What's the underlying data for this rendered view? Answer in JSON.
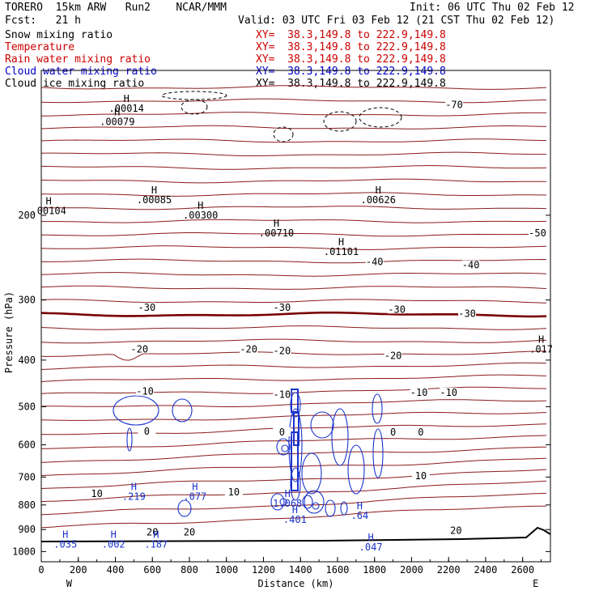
{
  "header": {
    "model": "TORERO  15km ARW   Run2    NCAR/MMM",
    "forecast": "Fcst:   21 h",
    "init": "Init: 06 UTC Thu 02 Feb 12",
    "valid": "Valid: 03 UTC Fri 03 Feb 12 (21 CST Thu 02 Feb 12)"
  },
  "fields": [
    {
      "name": "Snow mixing ratio",
      "xy": "XY=  38.3,149.8 to 222.9,149.8",
      "color": "#000000"
    },
    {
      "name": "Temperature",
      "xy": "XY=  38.3,149.8 to 222.9,149.8",
      "color": "#cc0000"
    },
    {
      "name": "Rain water mixing ratio",
      "xy": "XY=  38.3,149.8 to 222.9,149.8",
      "color": "#cc0000"
    },
    {
      "name": "Cloud water mixing ratio",
      "xy": "XY=  38.3,149.8 to 222.9,149.8",
      "color": "#0000cc"
    },
    {
      "name": "Cloud ice mixing ratio",
      "xy": "XY=  38.3,149.8 to 222.9,149.8",
      "color": "#000000"
    }
  ],
  "chart_data": {
    "type": "contour",
    "xlabel": "Distance (km)",
    "ylabel": "Pressure (hPa)",
    "xlim": [
      0,
      2750
    ],
    "ylim": [
      1050,
      100
    ],
    "y_scale": "log",
    "x_ticks": [
      0,
      200,
      400,
      600,
      800,
      1000,
      1200,
      1400,
      1600,
      1800,
      2000,
      2200,
      2400,
      2600
    ],
    "y_ticks": [
      200,
      300,
      400,
      500,
      600,
      700,
      800,
      900,
      1000
    ],
    "x_end_labels": [
      "W",
      "E"
    ],
    "temperature_contours": [
      {
        "label": "-70",
        "x": 2230,
        "p": 118
      },
      {
        "label": "-50",
        "x": 2680,
        "p": 218
      },
      {
        "label": "-40",
        "x": 1800,
        "p": 250
      },
      {
        "label": "-40",
        "x": 2320,
        "p": 254
      },
      {
        "label": "-30",
        "x": 570,
        "p": 311
      },
      {
        "label": "-30",
        "x": 1300,
        "p": 311
      },
      {
        "label": "-30",
        "x": 1920,
        "p": 314
      },
      {
        "label": "-30",
        "x": 2300,
        "p": 320
      },
      {
        "label": "-20",
        "x": 530,
        "p": 380
      },
      {
        "label": "-20",
        "x": 1120,
        "p": 380
      },
      {
        "label": "-20",
        "x": 1300,
        "p": 383
      },
      {
        "label": "-20",
        "x": 1900,
        "p": 392
      },
      {
        "label": "-10",
        "x": 560,
        "p": 465
      },
      {
        "label": "-10",
        "x": 1300,
        "p": 472
      },
      {
        "label": "-10",
        "x": 2040,
        "p": 467
      },
      {
        "label": "-10",
        "x": 2200,
        "p": 467
      },
      {
        "label": "0",
        "x": 570,
        "p": 563
      },
      {
        "label": "0",
        "x": 1300,
        "p": 565
      },
      {
        "label": "0",
        "x": 1900,
        "p": 565
      },
      {
        "label": "0",
        "x": 2050,
        "p": 565
      },
      {
        "label": "10",
        "x": 300,
        "p": 759
      },
      {
        "label": "10",
        "x": 1040,
        "p": 752
      },
      {
        "label": "10",
        "x": 2050,
        "p": 697
      },
      {
        "label": "20",
        "x": 600,
        "p": 912
      },
      {
        "label": "20",
        "x": 800,
        "p": 912
      },
      {
        "label": "20",
        "x": 2240,
        "p": 905
      }
    ],
    "maxima_labels": [
      {
        "text": ".00014",
        "x": 460,
        "p": 120
      },
      {
        "text": ".00079",
        "x": 410,
        "p": 128
      },
      {
        "text": ".00104",
        "x": 40,
        "p": 196
      },
      {
        "text": ".00085",
        "x": 610,
        "p": 186
      },
      {
        "text": ".00300",
        "x": 860,
        "p": 200
      },
      {
        "text": ".00710",
        "x": 1270,
        "p": 218
      },
      {
        "text": ".01101",
        "x": 1620,
        "p": 238
      },
      {
        "text": ".00626",
        "x": 1820,
        "p": 186
      },
      {
        "text": ".017",
        "x": 2700,
        "p": 380
      },
      {
        "text": ".219",
        "x": 500,
        "p": 768
      },
      {
        "text": ".077",
        "x": 830,
        "p": 768
      },
      {
        "text": "1.068",
        "x": 1330,
        "p": 795
      },
      {
        "text": ".401",
        "x": 1370,
        "p": 858
      },
      {
        "text": ".64",
        "x": 1720,
        "p": 842
      },
      {
        "text": ".035",
        "x": 130,
        "p": 966
      },
      {
        "text": ".002",
        "x": 390,
        "p": 966
      },
      {
        "text": ".187",
        "x": 620,
        "p": 966
      },
      {
        "text": ".047",
        "x": 1780,
        "p": 980
      }
    ]
  }
}
